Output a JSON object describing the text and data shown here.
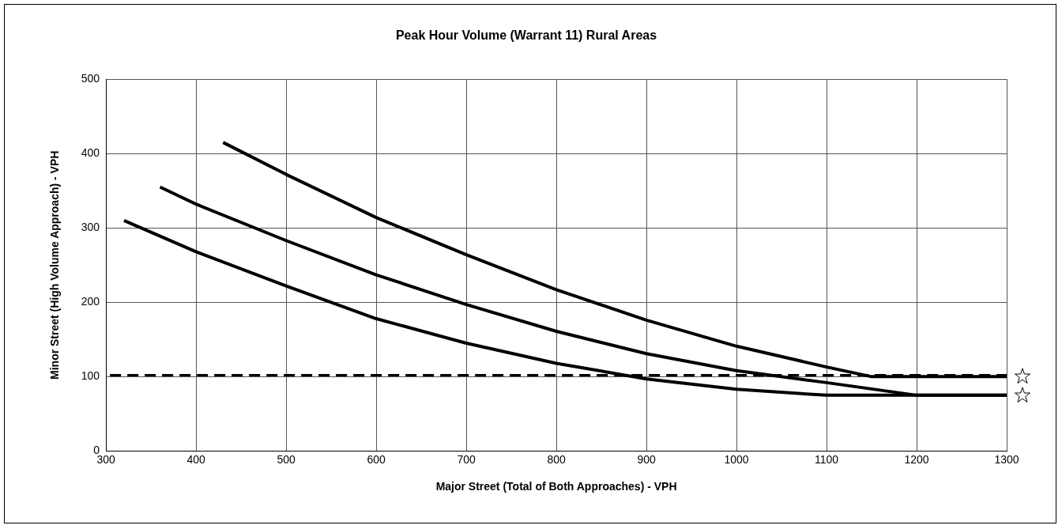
{
  "chart_data": {
    "type": "line",
    "title": "Peak Hour Volume (Warrant 11) Rural Areas",
    "xlabel": "Major Street (Total of Both Approaches) - VPH",
    "ylabel": "Minor Street (High Volume Approach) - VPH",
    "xlim": [
      300,
      1300
    ],
    "xticks": [
      300,
      400,
      500,
      600,
      700,
      800,
      900,
      1000,
      1100,
      1200,
      1300
    ],
    "ylim": [
      0,
      500
    ],
    "yticks": [
      0,
      100,
      200,
      300,
      400,
      500
    ],
    "grid": true,
    "legend": false,
    "marker": "none",
    "line_style": "solid",
    "series": [
      {
        "color": "#000000",
        "x": [
          430,
          500,
          600,
          700,
          800,
          900,
          1000,
          1100,
          1150,
          1300
        ],
        "values": [
          415,
          372,
          314,
          264,
          217,
          176,
          141,
          113,
          100,
          100
        ]
      },
      {
        "color": "#000000",
        "x": [
          360,
          400,
          500,
          600,
          700,
          800,
          900,
          1000,
          1100,
          1200,
          1300
        ],
        "values": [
          355,
          332,
          283,
          237,
          197,
          161,
          131,
          108,
          92,
          75,
          75
        ]
      },
      {
        "color": "#000000",
        "x": [
          320,
          400,
          500,
          600,
          700,
          800,
          900,
          1000,
          1100,
          1300
        ],
        "values": [
          310,
          268,
          222,
          178,
          145,
          118,
          97,
          83,
          75,
          75
        ]
      }
    ],
    "ref_lines": [
      {
        "axis": "y",
        "value": 102,
        "color": "#000000",
        "line_style": "dashed"
      }
    ]
  }
}
